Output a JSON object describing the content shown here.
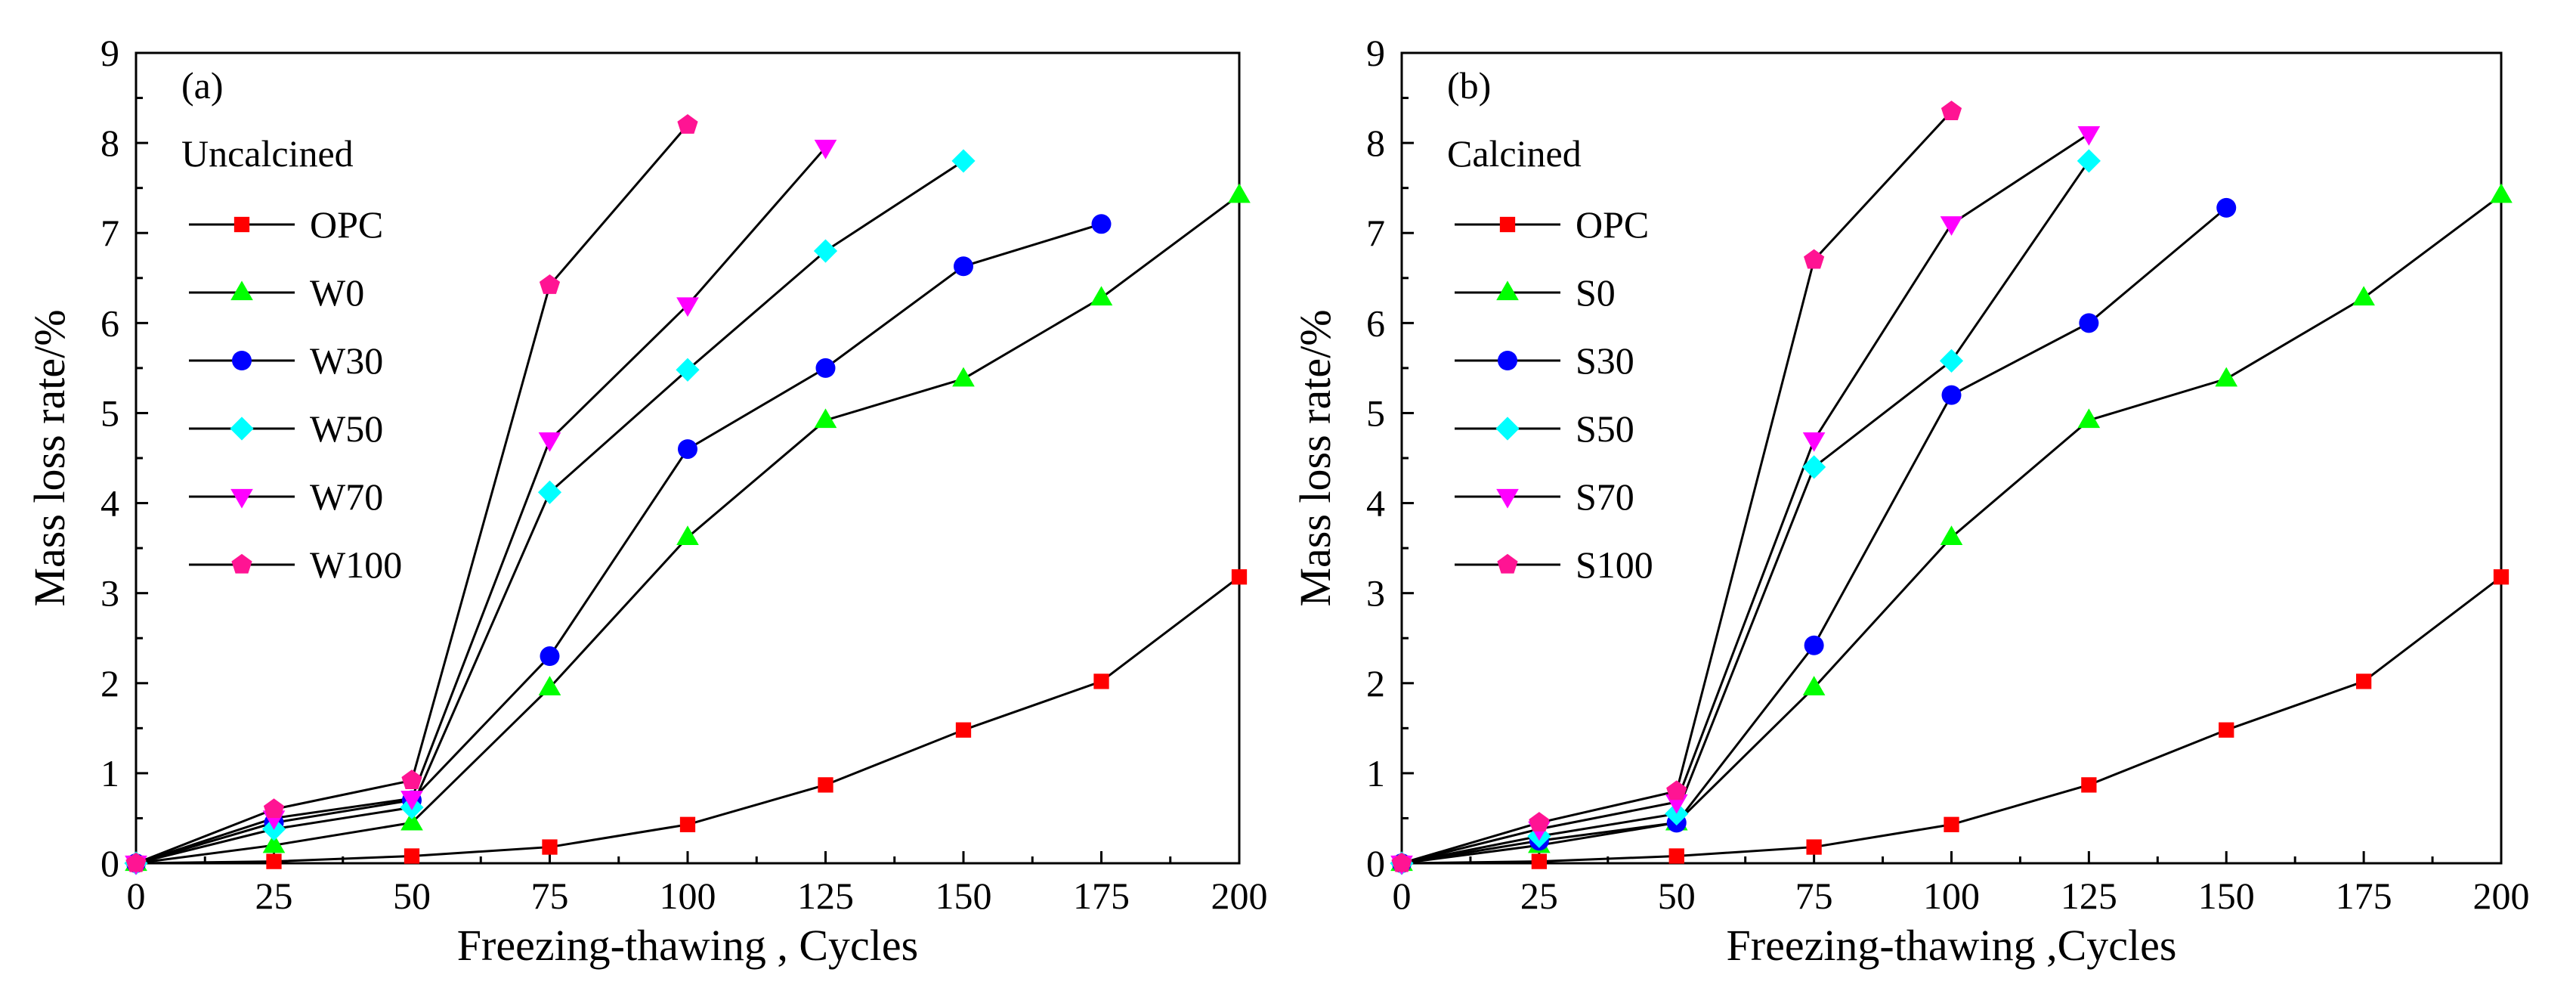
{
  "chart_data": [
    {
      "type": "line",
      "panel_label": "(a)",
      "legend_title": "Uncalcined",
      "xlabel": "Freezing-thawing , Cycles",
      "ylabel": "Mass loss rate/%",
      "xlim": [
        0,
        200
      ],
      "ylim": [
        0,
        9
      ],
      "xticks": [
        0,
        25,
        50,
        75,
        100,
        125,
        150,
        175,
        200
      ],
      "yticks": [
        0,
        1,
        2,
        3,
        4,
        5,
        6,
        7,
        8,
        9
      ],
      "grid": false,
      "legend_position": "upper-left",
      "series": [
        {
          "name": "OPC",
          "marker": "square",
          "color": "#ff0000",
          "x": [
            0,
            25,
            50,
            75,
            100,
            125,
            150,
            175,
            200
          ],
          "y": [
            0,
            0.02,
            0.08,
            0.18,
            0.43,
            0.87,
            1.48,
            2.02,
            3.18
          ]
        },
        {
          "name": "W0",
          "marker": "triangle-up",
          "color": "#00ff00",
          "x": [
            0,
            25,
            50,
            75,
            100,
            125,
            150,
            175,
            200
          ],
          "y": [
            0,
            0.2,
            0.45,
            1.95,
            3.62,
            4.92,
            5.38,
            6.28,
            7.42
          ]
        },
        {
          "name": "W30",
          "marker": "circle",
          "color": "#0000ff",
          "x": [
            0,
            25,
            50,
            75,
            100,
            125,
            150,
            175
          ],
          "y": [
            0,
            0.45,
            0.7,
            2.3,
            4.6,
            5.5,
            6.63,
            7.1
          ]
        },
        {
          "name": "W50",
          "marker": "diamond",
          "color": "#00ffff",
          "x": [
            0,
            25,
            50,
            75,
            100,
            125,
            150
          ],
          "y": [
            0,
            0.38,
            0.62,
            4.12,
            5.48,
            6.8,
            7.8
          ]
        },
        {
          "name": "W70",
          "marker": "triangle-down",
          "color": "#ff00ff",
          "x": [
            0,
            25,
            50,
            75,
            100,
            125
          ],
          "y": [
            0,
            0.5,
            0.72,
            4.7,
            6.2,
            7.95
          ]
        },
        {
          "name": "W100",
          "marker": "pentagon",
          "color": "#ff1493",
          "x": [
            0,
            25,
            50,
            75,
            100
          ],
          "y": [
            0,
            0.6,
            0.92,
            6.42,
            8.2
          ]
        }
      ]
    },
    {
      "type": "line",
      "panel_label": "(b)",
      "legend_title": "Calcined",
      "xlabel": "Freezing-thawing ,Cycles",
      "ylabel": "Mass loss rate/%",
      "xlim": [
        0,
        200
      ],
      "ylim": [
        0,
        9
      ],
      "xticks": [
        0,
        25,
        50,
        75,
        100,
        125,
        150,
        175,
        200
      ],
      "yticks": [
        0,
        1,
        2,
        3,
        4,
        5,
        6,
        7,
        8,
        9
      ],
      "grid": false,
      "legend_position": "upper-left",
      "series": [
        {
          "name": "OPC",
          "marker": "square",
          "color": "#ff0000",
          "x": [
            0,
            25,
            50,
            75,
            100,
            125,
            150,
            175,
            200
          ],
          "y": [
            0,
            0.02,
            0.08,
            0.18,
            0.43,
            0.87,
            1.48,
            2.02,
            3.18
          ]
        },
        {
          "name": "S0",
          "marker": "triangle-up",
          "color": "#00ff00",
          "x": [
            0,
            25,
            50,
            75,
            100,
            125,
            150,
            175,
            200
          ],
          "y": [
            0,
            0.2,
            0.45,
            1.95,
            3.62,
            4.92,
            5.38,
            6.28,
            7.42
          ]
        },
        {
          "name": "S30",
          "marker": "circle",
          "color": "#0000ff",
          "x": [
            0,
            25,
            50,
            75,
            100,
            125,
            150
          ],
          "y": [
            0,
            0.25,
            0.45,
            2.42,
            5.2,
            6.0,
            7.28
          ]
        },
        {
          "name": "S50",
          "marker": "diamond",
          "color": "#00ffff",
          "x": [
            0,
            25,
            50,
            75,
            100,
            125
          ],
          "y": [
            0,
            0.3,
            0.55,
            4.4,
            5.58,
            7.8
          ]
        },
        {
          "name": "S70",
          "marker": "triangle-down",
          "color": "#ff00ff",
          "x": [
            0,
            25,
            50,
            75,
            100,
            125
          ],
          "y": [
            0,
            0.38,
            0.68,
            4.7,
            7.1,
            8.1
          ]
        },
        {
          "name": "S100",
          "marker": "pentagon",
          "color": "#ff1493",
          "x": [
            0,
            25,
            50,
            75,
            100
          ],
          "y": [
            0,
            0.45,
            0.8,
            6.7,
            8.35
          ]
        }
      ]
    }
  ]
}
